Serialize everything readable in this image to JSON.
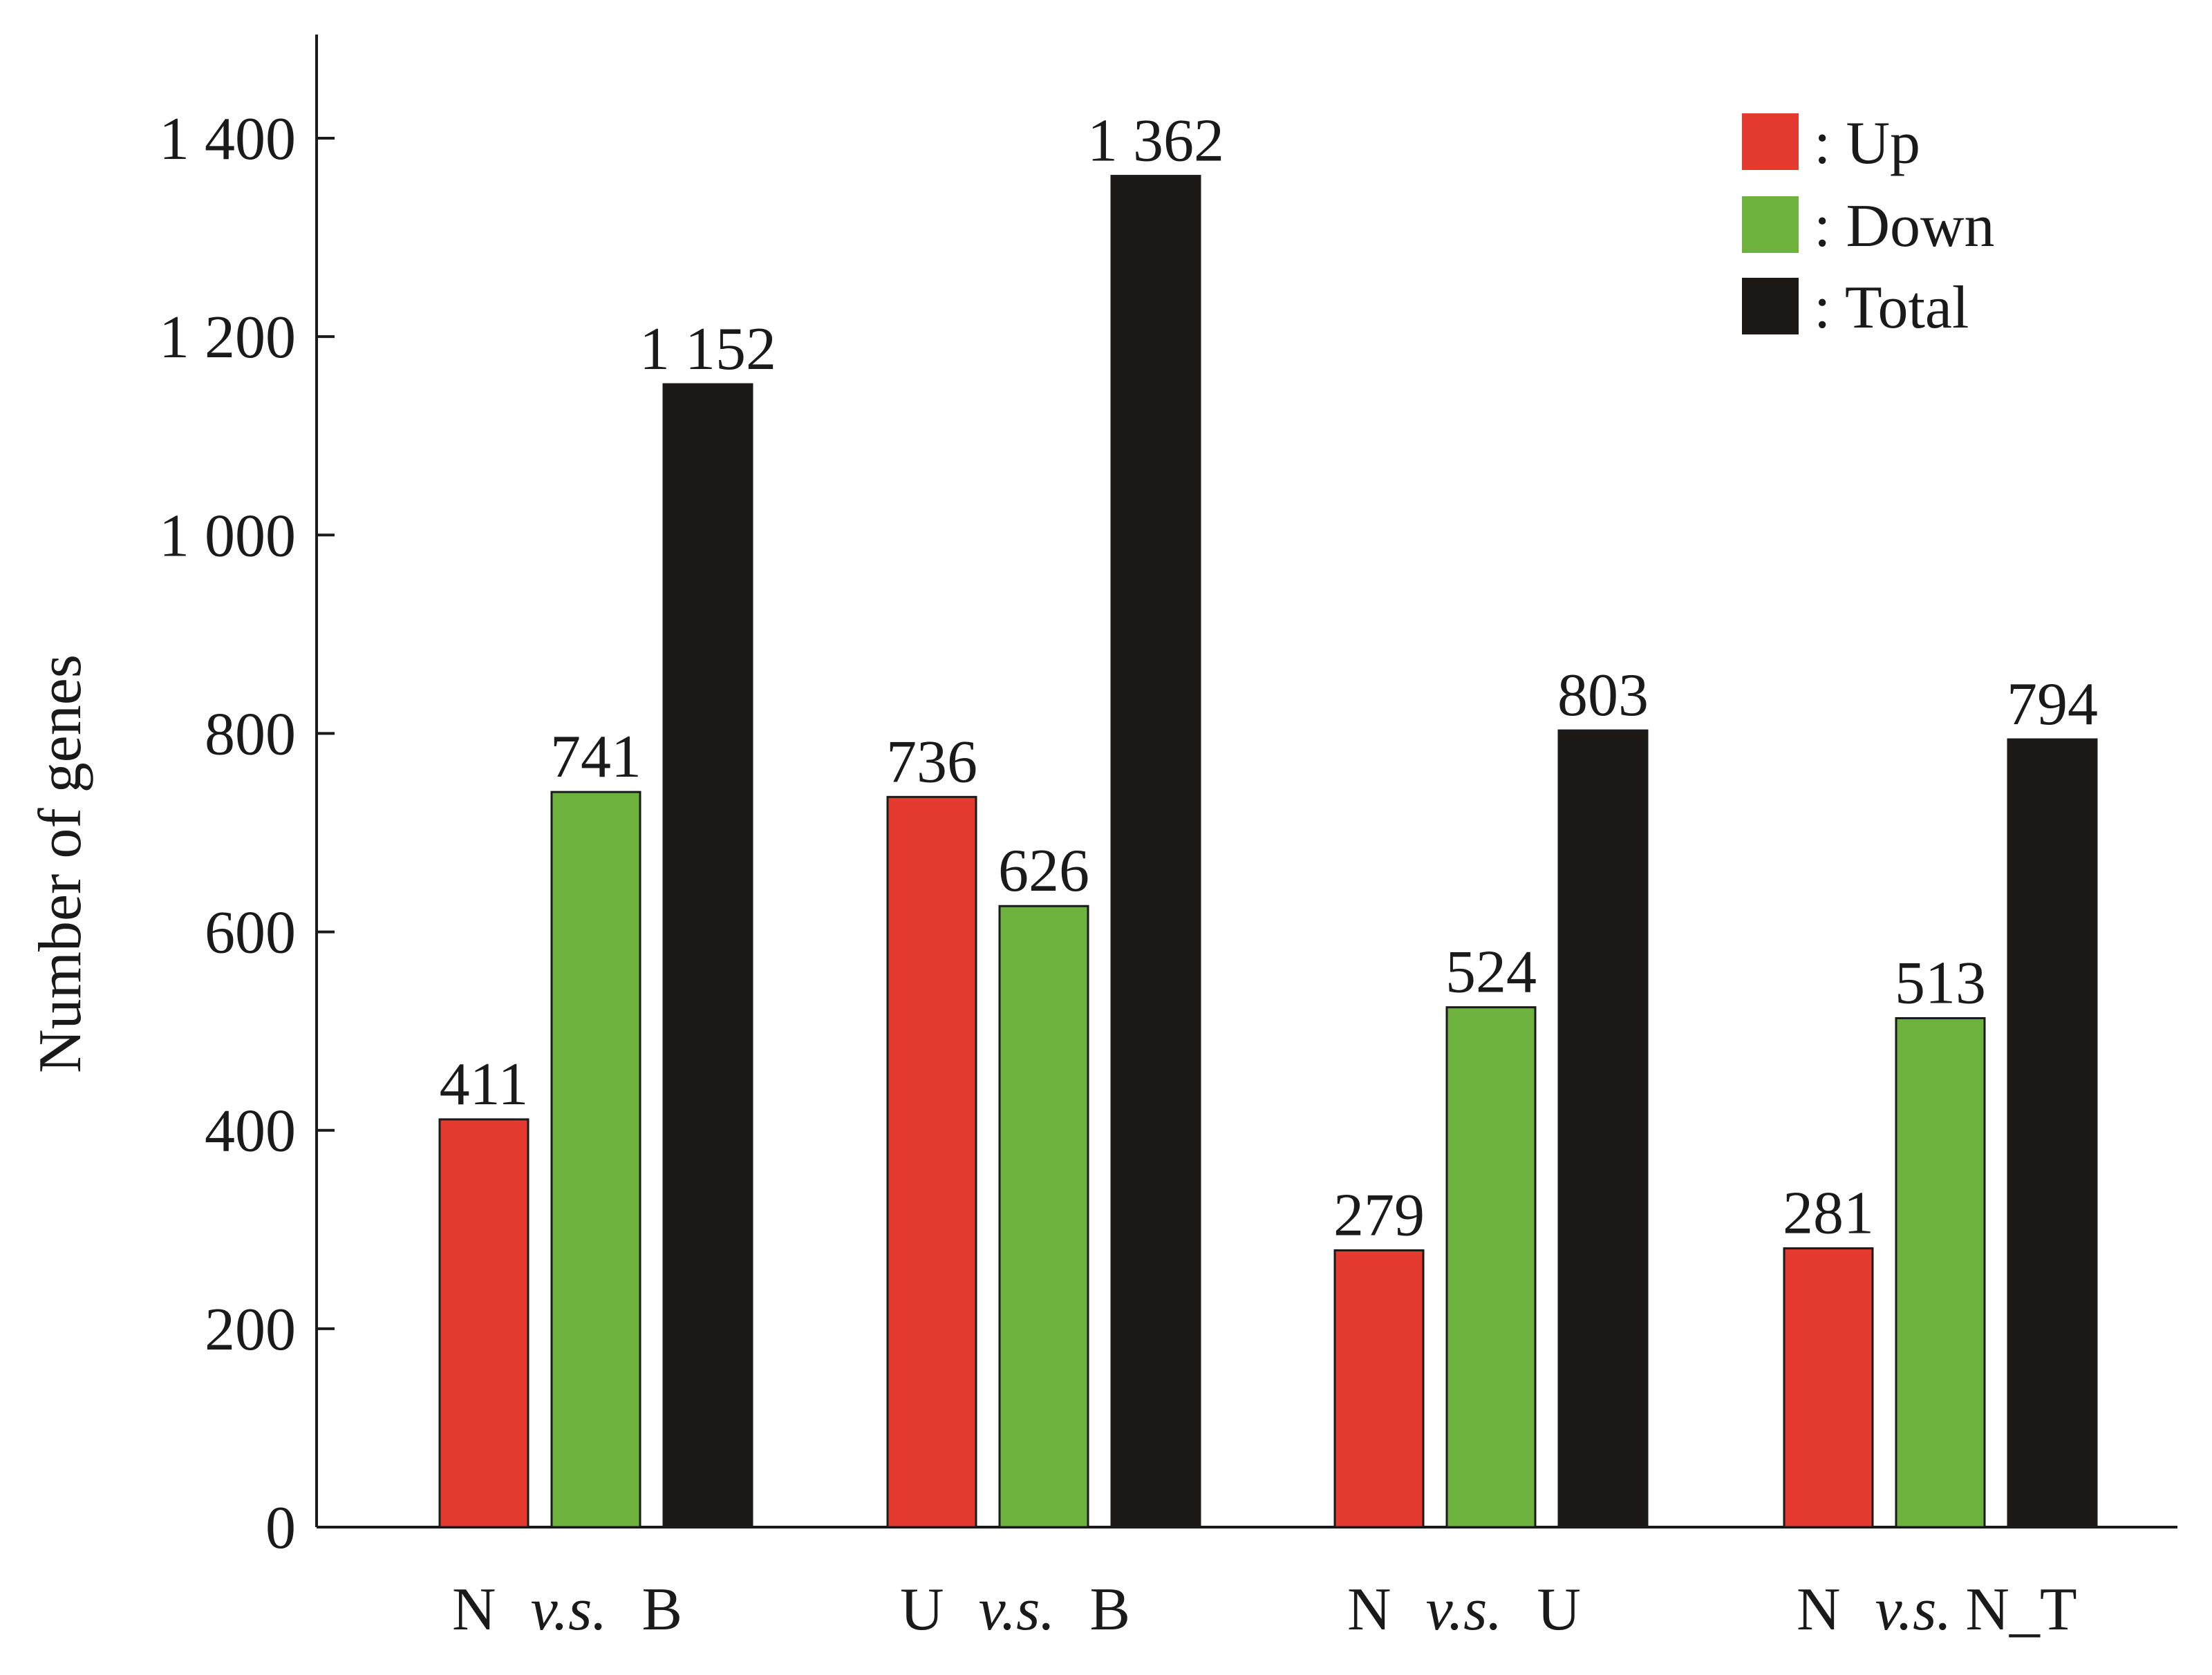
{
  "chart_data": {
    "type": "bar",
    "ylabel": "Number of genes",
    "ylim": [
      0,
      1500
    ],
    "yticks": [
      0,
      200,
      400,
      600,
      800,
      1000,
      1200,
      1400
    ],
    "ytick_labels": [
      "0",
      "200",
      "400",
      "600",
      "800",
      "1 000",
      "1 200",
      "1 400"
    ],
    "categories": [
      {
        "left": "N",
        "vs": "v.s.",
        "right": "B"
      },
      {
        "left": "U",
        "vs": "v.s.",
        "right": "B"
      },
      {
        "left": "N",
        "vs": "v.s.",
        "right": "U"
      },
      {
        "left": "N",
        "vs": "v.s.",
        "right": "N_T"
      }
    ],
    "series": [
      {
        "name": ": Up",
        "color": "#e43a2f",
        "values": [
          411,
          736,
          279,
          281
        ],
        "value_labels": [
          "411",
          "736",
          "279",
          "281"
        ]
      },
      {
        "name": ": Down",
        "color": "#6eb23e",
        "values": [
          741,
          626,
          524,
          513
        ],
        "value_labels": [
          "741",
          "626",
          "524",
          "513"
        ]
      },
      {
        "name": ": Total",
        "color": "#1c1815",
        "values": [
          1152,
          1362,
          803,
          794
        ],
        "value_labels": [
          "1 152",
          "1 362",
          "803",
          "794"
        ]
      }
    ],
    "legend_position": "top-right",
    "grid": false
  }
}
